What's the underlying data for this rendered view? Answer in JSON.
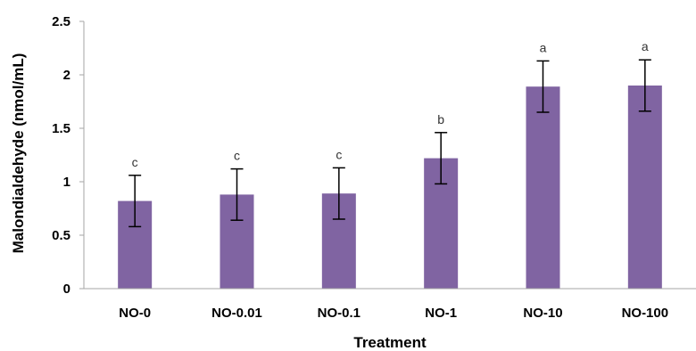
{
  "chart_data": {
    "type": "bar",
    "title": "",
    "xlabel": "Treatment",
    "ylabel": "Malondialdehyde (nmol/mL)",
    "categories": [
      "NO-0",
      "NO-0.01",
      "NO-0.1",
      "NO-1",
      "NO-10",
      "NO-100"
    ],
    "values": [
      0.82,
      0.88,
      0.89,
      1.22,
      1.89,
      1.9
    ],
    "errors": [
      0.24,
      0.24,
      0.24,
      0.24,
      0.24,
      0.24
    ],
    "significance_letters": [
      "c",
      "c",
      "c",
      "b",
      "a",
      "a"
    ],
    "ylim": [
      0,
      2.5
    ],
    "yticks": [
      "0",
      "0.5",
      "1",
      "1.5",
      "2",
      "2.5"
    ],
    "grid": false,
    "legend": "none",
    "colors": {
      "bar": "#8064a2",
      "error_bar": "#000000",
      "axis": "#a6a6a6"
    }
  }
}
